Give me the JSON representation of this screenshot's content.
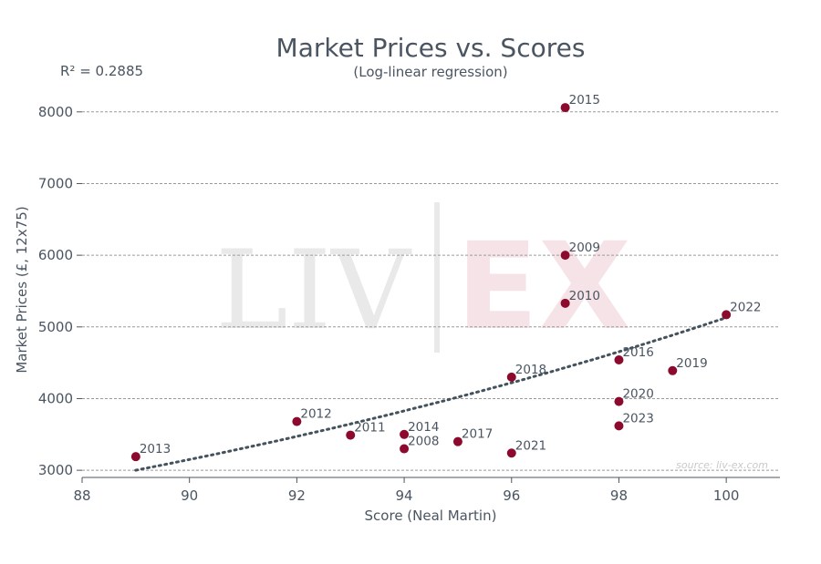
{
  "chart_data": {
    "type": "scatter",
    "title": "Market Prices vs. Scores",
    "subtitle": "(Log-linear regression)",
    "r_squared_label": "R² = 0.2885",
    "xlabel": "Score (Neal Martin)",
    "ylabel": "Market Prices (£, 12x75)",
    "xlim": [
      88,
      101
    ],
    "ylim": [
      2900,
      8150
    ],
    "x_ticks": [
      88,
      90,
      92,
      94,
      96,
      98,
      100
    ],
    "y_ticks": [
      3000,
      4000,
      5000,
      6000,
      7000,
      8000
    ],
    "grid": "horizontal dashed",
    "points": [
      {
        "label": "2008",
        "x": 94,
        "y": 3300
      },
      {
        "label": "2009",
        "x": 97,
        "y": 6000
      },
      {
        "label": "2010",
        "x": 97,
        "y": 5330
      },
      {
        "label": "2011",
        "x": 93,
        "y": 3490
      },
      {
        "label": "2012",
        "x": 92,
        "y": 3680
      },
      {
        "label": "2013",
        "x": 89,
        "y": 3190
      },
      {
        "label": "2014",
        "x": 94,
        "y": 3500
      },
      {
        "label": "2015",
        "x": 97,
        "y": 8060
      },
      {
        "label": "2016",
        "x": 98,
        "y": 4540
      },
      {
        "label": "2017",
        "x": 95,
        "y": 3400
      },
      {
        "label": "2018",
        "x": 96,
        "y": 4300
      },
      {
        "label": "2019",
        "x": 99,
        "y": 4390
      },
      {
        "label": "2020",
        "x": 98,
        "y": 3960
      },
      {
        "label": "2021",
        "x": 96,
        "y": 3240
      },
      {
        "label": "2022",
        "x": 100,
        "y": 5170
      },
      {
        "label": "2023",
        "x": 98,
        "y": 3620
      }
    ],
    "trendline": {
      "type": "log-linear",
      "x_start": 89,
      "y_start": 3000,
      "x_end": 100,
      "y_end": 5130
    },
    "point_color": "#8b0a2e",
    "trend_color": "#44525d",
    "watermark": "LIV EX",
    "source": "source: liv-ex.com"
  }
}
